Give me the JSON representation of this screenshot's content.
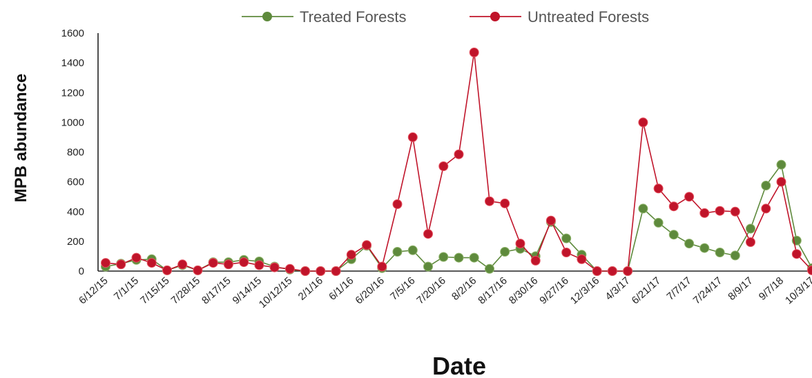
{
  "chart_data": {
    "type": "line",
    "xlabel": "Date",
    "ylabel": "MPB abundance",
    "ylim": [
      0,
      1600
    ],
    "yticks": [
      0,
      200,
      400,
      600,
      800,
      1000,
      1200,
      1400,
      1600
    ],
    "grid": false,
    "legend_position": "top",
    "x_tick_labels": [
      "6/12/15",
      "7/1/15",
      "7/15/15",
      "7/28/15",
      "8/17/15",
      "9/14/15",
      "10/12/15",
      "2/1/16",
      "6/1/16",
      "6/20/16",
      "7/5/16",
      "7/20/16",
      "8/2/16",
      "8/17/16",
      "8/30/16",
      "9/27/16",
      "12/3/16",
      "4/3/17",
      "6/21/17",
      "7/7/17",
      "7/24/17",
      "8/9/17",
      "9/7/18",
      "10/3/17"
    ],
    "series": [
      {
        "name": "Treated Forests",
        "color": "#5e8a3c",
        "values": [
          30,
          50,
          75,
          80,
          5,
          40,
          5,
          60,
          60,
          75,
          65,
          30,
          10,
          0,
          0,
          0,
          80,
          170,
          20,
          130,
          140,
          30,
          95,
          90,
          90,
          15,
          130,
          150,
          100,
          330,
          220,
          110,
          0,
          0,
          0,
          420,
          325,
          245,
          185,
          155,
          125,
          105,
          285,
          575,
          715,
          205,
          20
        ]
      },
      {
        "name": "Untreated Forests",
        "color": "#c0142a",
        "values": [
          55,
          45,
          90,
          55,
          5,
          45,
          5,
          55,
          45,
          60,
          40,
          25,
          15,
          0,
          0,
          0,
          110,
          175,
          30,
          450,
          900,
          250,
          705,
          785,
          1470,
          470,
          455,
          185,
          70,
          340,
          125,
          80,
          0,
          0,
          0,
          1000,
          555,
          435,
          500,
          390,
          405,
          400,
          195,
          420,
          600,
          115,
          5
        ]
      }
    ]
  }
}
